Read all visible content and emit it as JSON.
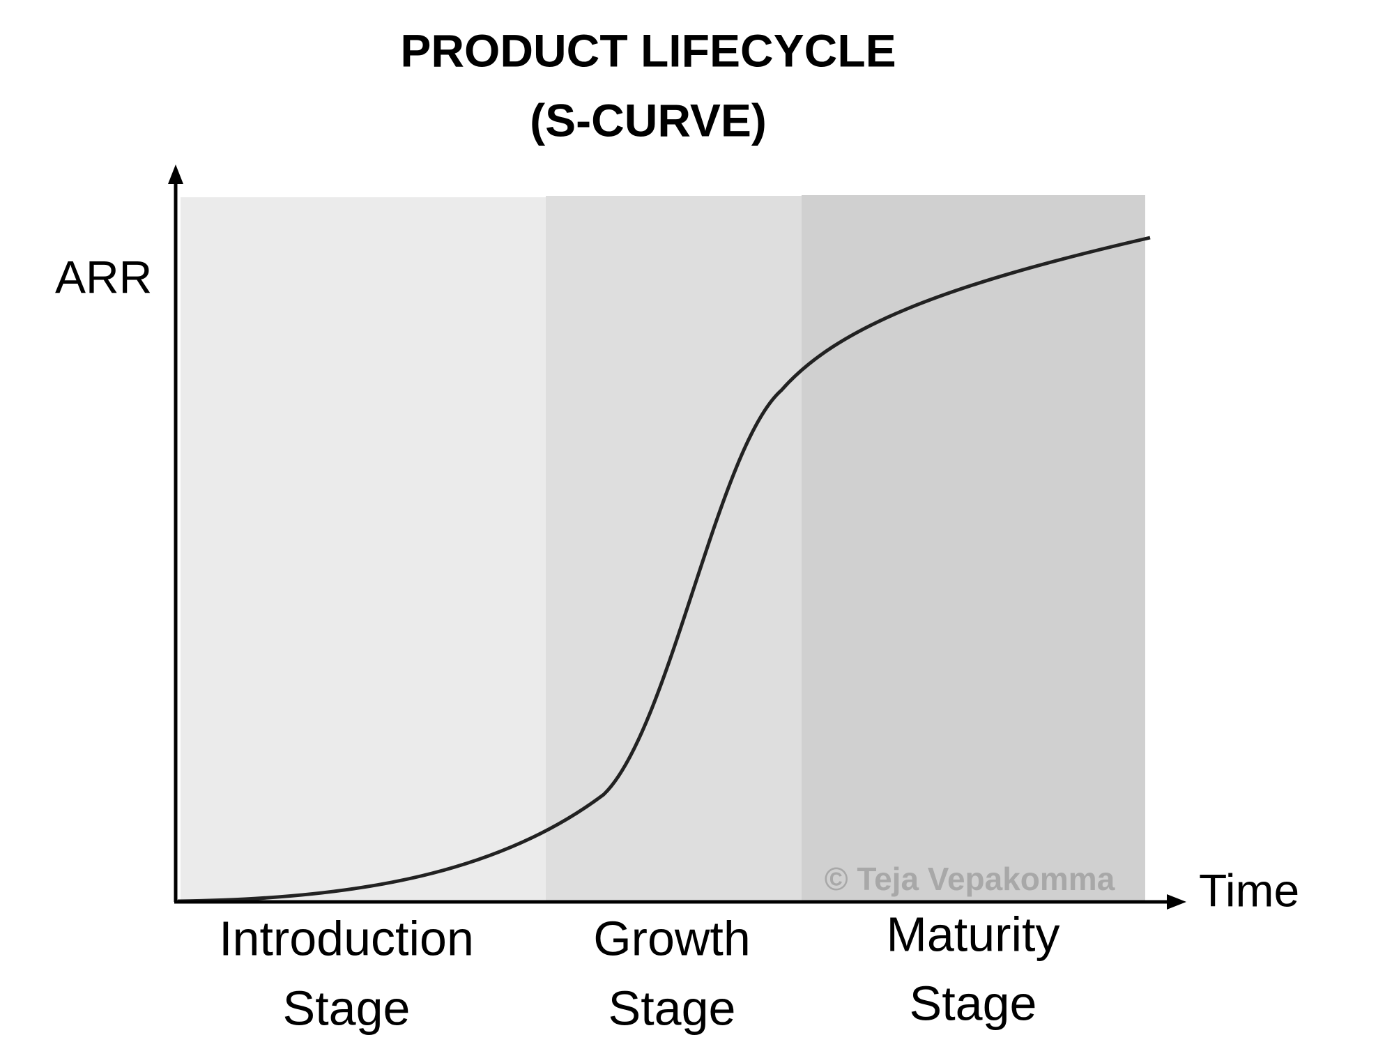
{
  "title": [
    "PRODUCT LIFECYCLE",
    "(S-CURVE)"
  ],
  "y_axis_label": "ARR",
  "x_axis_label": "Time",
  "stages": [
    [
      "Introduction",
      "Stage"
    ],
    [
      "Growth",
      "Stage"
    ],
    [
      "Maturity",
      "Stage"
    ]
  ],
  "watermark": "© Teja Vepakomma"
}
